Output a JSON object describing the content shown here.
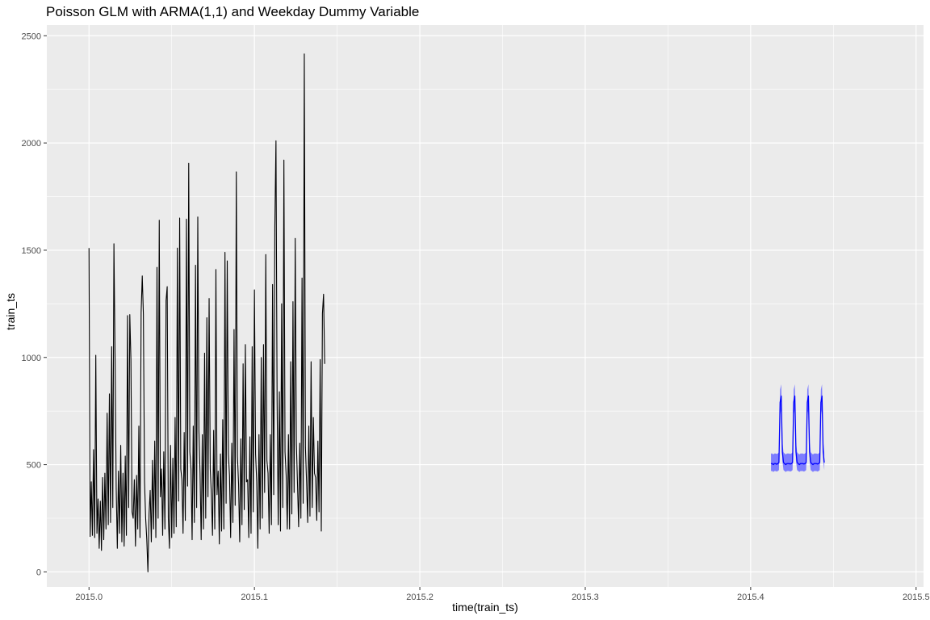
{
  "chart_data": {
    "type": "line",
    "title": "Poisson GLM with ARMA(1,1) and Weekday Dummy Variable",
    "xlabel": "time(train_ts)",
    "ylabel": "train_ts",
    "xlim": [
      1977.495,
      2015.504
    ],
    "ylim": [
      -70,
      2550
    ],
    "grid": true,
    "x_ticks": [
      "2015.0",
      "2015.1",
      "2015.2",
      "2015.3",
      "2015.4",
      "2015.5"
    ],
    "x_tick_values": [
      2015.0,
      2015.1,
      2015.2,
      2015.3,
      2015.4,
      2015.5
    ],
    "y_ticks": [
      "0",
      "500",
      "1000",
      "1500",
      "2000",
      "2500"
    ],
    "y_tick_values": [
      0,
      500,
      1000,
      1500,
      2000,
      2500
    ],
    "series": [
      {
        "kind": "observed",
        "color": "#000000",
        "x_start": 2015.0,
        "x_step": 0.000685,
        "values": [
          1510,
          165,
          420,
          170,
          570,
          160,
          1010,
          180,
          340,
          110,
          330,
          100,
          440,
          150,
          460,
          200,
          740,
          220,
          830,
          230,
          1050,
          300,
          1530,
          1000,
          390,
          110,
          470,
          180,
          590,
          140,
          460,
          120,
          540,
          170,
          1195,
          300,
          1200,
          990,
          280,
          250,
          430,
          120,
          450,
          200,
          680,
          160,
          1210,
          1380,
          1200,
          420,
          250,
          150,
          0,
          270,
          380,
          140,
          520,
          200,
          610,
          160,
          1420,
          250,
          1640,
          350,
          480,
          170,
          560,
          200,
          1265,
          1330,
          250,
          110,
          590,
          160,
          530,
          180,
          720,
          210,
          1510,
          330,
          1650,
          480,
          430,
          180,
          650,
          240,
          1645,
          400,
          1905,
          560,
          480,
          150,
          680,
          230,
          1430,
          300,
          1655,
          660,
          460,
          150,
          640,
          200,
          1020,
          250,
          1185,
          350,
          1275,
          480,
          360,
          170,
          660,
          200,
          1410,
          360,
          470,
          130,
          550,
          190,
          710,
          200,
          1490,
          320,
          1450,
          550,
          450,
          160,
          600,
          230,
          1130,
          310,
          1865,
          540,
          410,
          140,
          620,
          220,
          970,
          290,
          1060,
          420,
          430,
          160,
          630,
          180,
          1050,
          280,
          1315,
          550,
          420,
          110,
          640,
          200,
          1000,
          250,
          1060,
          370,
          1480,
          520,
          460,
          180,
          640,
          220,
          1340,
          360,
          1610,
          2010,
          800,
          220,
          840,
          190,
          1250,
          300,
          1920,
          560,
          450,
          200,
          640,
          200,
          980,
          270,
          1260,
          370,
          1555,
          600,
          410,
          210,
          600,
          250,
          1370,
          320,
          2415,
          580,
          420,
          230,
          680,
          260,
          980,
          300,
          720,
          460,
          440,
          240,
          610,
          280,
          990,
          190,
          1205,
          1295,
          970
        ]
      },
      {
        "kind": "forecast",
        "color": "#0000ff",
        "band_color": "#7777ff",
        "x_start": 2015.4123,
        "x_step": 0.000685,
        "values": [
          505,
          505,
          500,
          505,
          505,
          502,
          505,
          510,
          790,
          820,
          560,
          510,
          505,
          500,
          505,
          505,
          505,
          503,
          505,
          510,
          790,
          820,
          560,
          510,
          505,
          500,
          505,
          505,
          505,
          503,
          505,
          510,
          790,
          820,
          560,
          510,
          505,
          500,
          505,
          505,
          505,
          503,
          505,
          510,
          790,
          820,
          560,
          510
        ],
        "lower": [
          470,
          470,
          466,
          470,
          470,
          468,
          470,
          475,
          730,
          760,
          520,
          475,
          470,
          466,
          470,
          470,
          470,
          468,
          470,
          475,
          730,
          760,
          520,
          475,
          470,
          466,
          470,
          470,
          470,
          468,
          470,
          475,
          730,
          760,
          520,
          475,
          470,
          466,
          470,
          470,
          470,
          468,
          470,
          475,
          730,
          760,
          520,
          475
        ],
        "upper": [
          552,
          552,
          548,
          552,
          552,
          550,
          552,
          558,
          850,
          875,
          610,
          558,
          552,
          548,
          552,
          552,
          552,
          550,
          552,
          558,
          850,
          875,
          610,
          558,
          552,
          548,
          552,
          552,
          552,
          550,
          552,
          558,
          850,
          875,
          610,
          558,
          552,
          548,
          552,
          552,
          552,
          550,
          552,
          558,
          850,
          875,
          610,
          558
        ]
      }
    ]
  }
}
